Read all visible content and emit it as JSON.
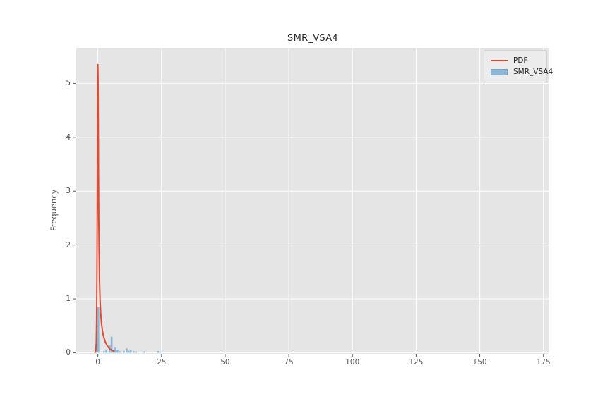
{
  "figure": {
    "background": "#ffffff"
  },
  "chart_data": {
    "type": "histogram",
    "title": "SMR_VSA4",
    "xlabel": "",
    "ylabel": "Frequency",
    "x_ticks": [
      0,
      25,
      50,
      75,
      100,
      125,
      150,
      175
    ],
    "y_ticks": [
      0,
      1,
      2,
      3,
      4,
      5
    ],
    "xlim": [
      -8.5,
      177.3
    ],
    "ylim": [
      -0.02,
      5.66
    ],
    "grid": true,
    "legend": {
      "position": "upper right",
      "entries": [
        {
          "label": "PDF",
          "swatch": "line"
        },
        {
          "label": "SMR_VSA4",
          "swatch": "patch"
        }
      ]
    },
    "styles": {
      "axes_bg": "#E5E5E5",
      "grid_color": "#FAFAFA",
      "tick_color": "#555555",
      "text_color": "#262626",
      "pdf_color": "#E24A33",
      "bar_color": "#8DB6D5",
      "legend_bg": "#ECECEC",
      "legend_border": "#D2D2D2"
    },
    "series": [
      {
        "name": "SMR_VSA4",
        "type": "bar",
        "bar_width": 0.72,
        "bars": [
          [
            -0.1,
            0.85,
            1.3
          ],
          [
            2.4,
            0.03
          ],
          [
            3.3,
            0.045
          ],
          [
            4.6,
            0.135
          ],
          [
            5.4,
            0.3
          ],
          [
            6.2,
            0.05
          ],
          [
            6.9,
            0.1
          ],
          [
            7.7,
            0.055
          ],
          [
            8.5,
            0.03
          ],
          [
            10.2,
            0.035
          ],
          [
            11.3,
            0.08
          ],
          [
            12.1,
            0.035
          ],
          [
            12.9,
            0.055
          ],
          [
            14.1,
            0.03
          ],
          [
            15.0,
            0.022
          ],
          [
            18.3,
            0.026
          ],
          [
            23.6,
            0.032
          ],
          [
            24.5,
            0.026
          ]
        ]
      },
      {
        "name": "PDF",
        "type": "line",
        "stroke_width": 2,
        "points": [
          [
            -1.15,
            0.004
          ],
          [
            -0.95,
            0.015
          ],
          [
            -0.78,
            0.06
          ],
          [
            -0.62,
            0.18
          ],
          [
            -0.48,
            0.55
          ],
          [
            -0.34,
            1.5
          ],
          [
            -0.22,
            3.0
          ],
          [
            -0.12,
            4.4
          ],
          [
            -0.02,
            5.35
          ],
          [
            0.06,
            5.1
          ],
          [
            0.14,
            4.35
          ],
          [
            0.24,
            3.4
          ],
          [
            0.36,
            2.5
          ],
          [
            0.5,
            1.8
          ],
          [
            0.65,
            1.35
          ],
          [
            0.85,
            1.0
          ],
          [
            1.1,
            0.75
          ],
          [
            1.4,
            0.56
          ],
          [
            1.75,
            0.42
          ],
          [
            2.1,
            0.33
          ],
          [
            2.5,
            0.26
          ],
          [
            3.0,
            0.19
          ],
          [
            3.5,
            0.145
          ],
          [
            4.0,
            0.11
          ],
          [
            4.5,
            0.08
          ],
          [
            5.0,
            0.06
          ],
          [
            5.5,
            0.045
          ],
          [
            6.0,
            0.034
          ],
          [
            6.35,
            0.03
          ]
        ]
      }
    ]
  }
}
